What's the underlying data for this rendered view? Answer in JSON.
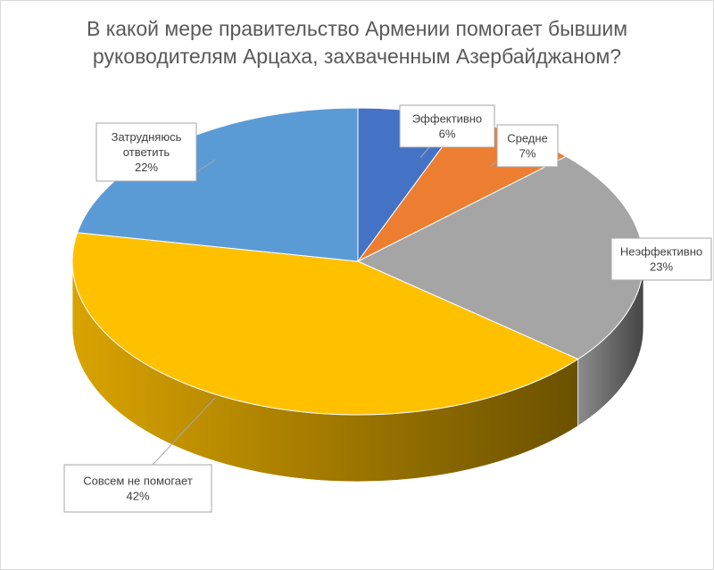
{
  "chart_data": {
    "type": "pie",
    "title_lines": [
      "В какой мере правительство Армении помогает бывшим",
      "руководителям Арцаха, захваченным Азербайджаном?"
    ],
    "slices": [
      {
        "name": "Эффективно",
        "label_lines": [
          "Эффективно",
          "6%"
        ],
        "value": 6,
        "color": "#4472C4"
      },
      {
        "name": "Средне",
        "label_lines": [
          "Средне",
          "7%"
        ],
        "value": 7,
        "color": "#ED7D31"
      },
      {
        "name": "Неэффективно",
        "label_lines": [
          "Неэффективно",
          "23%"
        ],
        "value": 23,
        "color": "#A5A5A5"
      },
      {
        "name": "Совсем не помогает",
        "label_lines": [
          "Совсем не помогает",
          "42%"
        ],
        "value": 42,
        "color": "#FFC000"
      },
      {
        "name": "Затрудняюсь ответить",
        "label_lines": [
          "Затрудняюсь",
          "ответить",
          "22%"
        ],
        "value": 22,
        "color": "#5B9BD5"
      }
    ],
    "legend": "none"
  }
}
